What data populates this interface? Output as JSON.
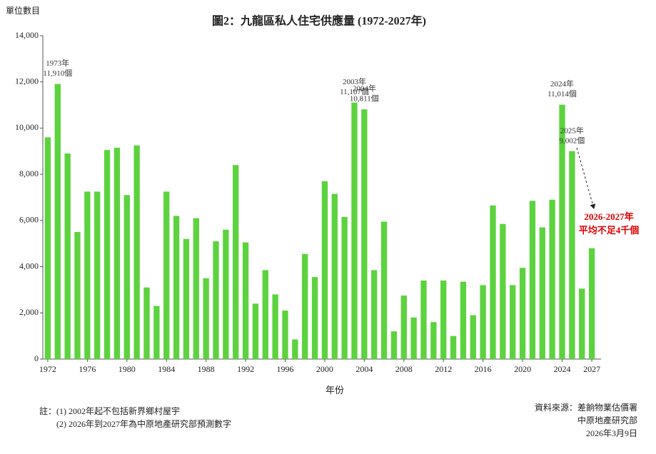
{
  "chart_data": {
    "type": "bar",
    "title": "圖2：九龍區私人住宅供應量 (1972-2027年)",
    "y_unit_label": "單位數目",
    "x_label": "年份",
    "categories": [
      "1972",
      null,
      null,
      null,
      "1976",
      null,
      null,
      null,
      "1980",
      null,
      null,
      null,
      "1984",
      null,
      null,
      null,
      "1988",
      null,
      null,
      null,
      "1992",
      null,
      null,
      null,
      "1996",
      null,
      null,
      null,
      "2000",
      null,
      null,
      null,
      "2004",
      null,
      null,
      null,
      "2008",
      null,
      null,
      null,
      "2012",
      null,
      null,
      null,
      "2016",
      null,
      null,
      null,
      "2020",
      null,
      null,
      null,
      "2024",
      null,
      null,
      "2027"
    ],
    "values": [
      9600,
      11910,
      8900,
      5500,
      7250,
      7250,
      9050,
      9150,
      7100,
      9250,
      3100,
      2300,
      7250,
      6200,
      5200,
      6100,
      3500,
      5100,
      5600,
      8400,
      5050,
      2400,
      3850,
      2800,
      2100,
      850,
      4550,
      3550,
      7700,
      7150,
      6150,
      11107,
      10811,
      3850,
      5950,
      1200,
      2750,
      1800,
      3400,
      1600,
      3400,
      1000,
      3350,
      1900,
      3200,
      6650,
      5850,
      3200,
      3950,
      6850,
      5700,
      6900,
      11014,
      9002,
      3050,
      4800
    ],
    "value_labels": [
      null,
      [
        "1973年",
        "11,910個"
      ],
      null,
      null,
      null,
      null,
      null,
      null,
      null,
      null,
      null,
      null,
      null,
      null,
      null,
      null,
      null,
      null,
      null,
      null,
      null,
      null,
      null,
      null,
      null,
      null,
      null,
      null,
      null,
      null,
      null,
      [
        "2003年",
        "11,107個"
      ],
      [
        "2004年",
        "10,811個"
      ],
      null,
      null,
      null,
      null,
      null,
      null,
      null,
      null,
      null,
      null,
      null,
      null,
      null,
      null,
      null,
      null,
      null,
      null,
      null,
      [
        "2024年",
        "11,014個"
      ],
      [
        "2025年",
        "9,002個"
      ],
      null,
      null
    ],
    "color": "#5cd33e",
    "ylim": [
      0,
      14000
    ],
    "yticks": [
      0,
      {
        "value": 2000,
        "label": "2,000"
      },
      {
        "value": 4000,
        "label": "4,000"
      },
      {
        "value": 6000,
        "label": "6,000"
      },
      {
        "value": 8000,
        "label": "8,000"
      },
      {
        "value": 10000,
        "label": "10,000"
      },
      {
        "value": 12000,
        "label": "12,000"
      },
      {
        "value": 14000,
        "label": "14,000"
      }
    ],
    "grid": false,
    "forecast_note": [
      "2026-2027年",
      "平均不足4千個"
    ],
    "notes": [
      "註：(1) 2002年起不包括新界鄉村屋宇",
      "(2) 2026年到2027年為中原地產研究部預測數字"
    ],
    "source": [
      "資料來源：差餉物業估價署",
      "中原地產研究部",
      "2026年3月9日"
    ]
  }
}
